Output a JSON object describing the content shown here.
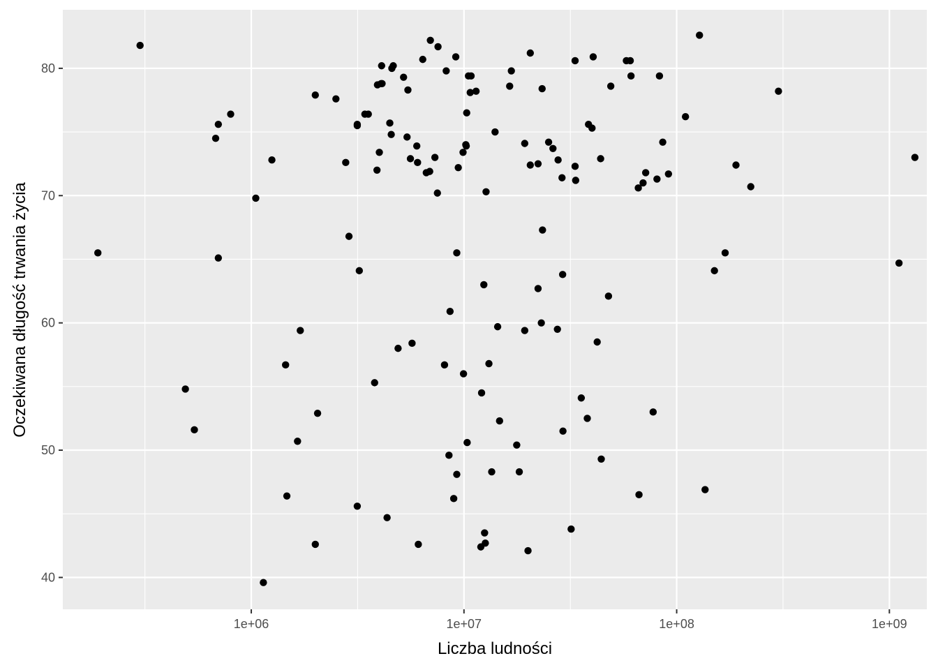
{
  "chart_data": {
    "type": "scatter",
    "title": "",
    "xlabel": "Liczba ludności",
    "ylabel": "Oczekiwana długość trwania życia",
    "x_scale": "log10",
    "xlim": [
      130000,
      1500000000
    ],
    "ylim": [
      37.5,
      84.6
    ],
    "x_ticks": [
      1000000,
      10000000,
      100000000,
      1000000000
    ],
    "x_tick_labels": [
      "1e+06",
      "1e+07",
      "1e+08",
      "1e+09"
    ],
    "y_ticks": [
      40,
      50,
      60,
      70,
      80
    ],
    "y_tick_labels": [
      "40",
      "50",
      "60",
      "70",
      "80"
    ],
    "grid": true,
    "legend": "none",
    "colors": {
      "panel": "#ebebeb",
      "grid": "#ffffff",
      "point": "#000000"
    },
    "points": [
      [
        190000,
        65.5
      ],
      [
        300000,
        81.8
      ],
      [
        490000,
        54.8
      ],
      [
        540000,
        51.6
      ],
      [
        680000,
        74.5
      ],
      [
        700000,
        75.6
      ],
      [
        700000,
        65.1
      ],
      [
        800000,
        76.4
      ],
      [
        1050000,
        69.8
      ],
      [
        1140000,
        39.6
      ],
      [
        1250000,
        72.8
      ],
      [
        1450000,
        56.7
      ],
      [
        1470000,
        46.4
      ],
      [
        1650000,
        50.7
      ],
      [
        1700000,
        59.4
      ],
      [
        2000000,
        77.9
      ],
      [
        2000000,
        42.6
      ],
      [
        2050000,
        52.9
      ],
      [
        2500000,
        77.6
      ],
      [
        2780000,
        72.6
      ],
      [
        2880000,
        66.8
      ],
      [
        3150000,
        75.6
      ],
      [
        3150000,
        75.5
      ],
      [
        3150000,
        45.6
      ],
      [
        3220000,
        64.1
      ],
      [
        3420000,
        76.4
      ],
      [
        3550000,
        76.4
      ],
      [
        3800000,
        55.3
      ],
      [
        3900000,
        72.0
      ],
      [
        3920000,
        78.7
      ],
      [
        4000000,
        73.4
      ],
      [
        4080000,
        78.8
      ],
      [
        4100000,
        80.2
      ],
      [
        4120000,
        78.8
      ],
      [
        4350000,
        44.7
      ],
      [
        4480000,
        75.7
      ],
      [
        4550000,
        74.8
      ],
      [
        4580000,
        80.0
      ],
      [
        4650000,
        80.2
      ],
      [
        4900000,
        58.0
      ],
      [
        5200000,
        79.3
      ],
      [
        5400000,
        74.6
      ],
      [
        5450000,
        78.3
      ],
      [
        5600000,
        72.9
      ],
      [
        5700000,
        58.4
      ],
      [
        6000000,
        73.9
      ],
      [
        6050000,
        72.6
      ],
      [
        6100000,
        42.6
      ],
      [
        6400000,
        80.7
      ],
      [
        6650000,
        71.8
      ],
      [
        6900000,
        71.9
      ],
      [
        6950000,
        82.2
      ],
      [
        7300000,
        73.0
      ],
      [
        7500000,
        70.2
      ],
      [
        7550000,
        81.7
      ],
      [
        8100000,
        56.7
      ],
      [
        8250000,
        79.8
      ],
      [
        8500000,
        49.6
      ],
      [
        8600000,
        60.9
      ],
      [
        8950000,
        46.2
      ],
      [
        9150000,
        80.9
      ],
      [
        9250000,
        65.5
      ],
      [
        9250000,
        48.1
      ],
      [
        9400000,
        72.2
      ],
      [
        9900000,
        73.4
      ],
      [
        9950000,
        56.0
      ],
      [
        10200000,
        74.0
      ],
      [
        10250000,
        73.9
      ],
      [
        10300000,
        76.5
      ],
      [
        10350000,
        50.6
      ],
      [
        10500000,
        79.4
      ],
      [
        10700000,
        78.1
      ],
      [
        10800000,
        79.4
      ],
      [
        11400000,
        78.2
      ],
      [
        12000000,
        42.4
      ],
      [
        12100000,
        54.5
      ],
      [
        12400000,
        63.0
      ],
      [
        12500000,
        43.5
      ],
      [
        12600000,
        42.7
      ],
      [
        12700000,
        70.3
      ],
      [
        13100000,
        56.8
      ],
      [
        13500000,
        48.3
      ],
      [
        14000000,
        75.0
      ],
      [
        14400000,
        59.7
      ],
      [
        14700000,
        52.3
      ],
      [
        16400000,
        78.6
      ],
      [
        16700000,
        79.8
      ],
      [
        17700000,
        50.4
      ],
      [
        18200000,
        48.3
      ],
      [
        19300000,
        74.1
      ],
      [
        19300000,
        59.4
      ],
      [
        20000000,
        42.1
      ],
      [
        20500000,
        81.2
      ],
      [
        20500000,
        72.4
      ],
      [
        22300000,
        72.5
      ],
      [
        22300000,
        62.7
      ],
      [
        23100000,
        60.0
      ],
      [
        23300000,
        78.4
      ],
      [
        23400000,
        67.3
      ],
      [
        25000000,
        74.2
      ],
      [
        26200000,
        73.7
      ],
      [
        27500000,
        59.5
      ],
      [
        27700000,
        72.8
      ],
      [
        28900000,
        71.4
      ],
      [
        29100000,
        63.8
      ],
      [
        29200000,
        51.5
      ],
      [
        31900000,
        43.8
      ],
      [
        33300000,
        80.6
      ],
      [
        33300000,
        72.3
      ],
      [
        33500000,
        71.2
      ],
      [
        35600000,
        54.1
      ],
      [
        38000000,
        52.5
      ],
      [
        38500000,
        75.6
      ],
      [
        40000000,
        75.3
      ],
      [
        40500000,
        80.9
      ],
      [
        42300000,
        58.5
      ],
      [
        43900000,
        72.9
      ],
      [
        44200000,
        49.3
      ],
      [
        47800000,
        62.1
      ],
      [
        49000000,
        78.6
      ],
      [
        58000000,
        80.6
      ],
      [
        60500000,
        80.6
      ],
      [
        61000000,
        79.4
      ],
      [
        66000000,
        70.6
      ],
      [
        66500000,
        46.5
      ],
      [
        69500000,
        71.0
      ],
      [
        71500000,
        71.8
      ],
      [
        77500000,
        53.0
      ],
      [
        80800000,
        71.3
      ],
      [
        83000000,
        79.4
      ],
      [
        86000000,
        74.2
      ],
      [
        91500000,
        71.7
      ],
      [
        110000000,
        76.2
      ],
      [
        128000000,
        82.6
      ],
      [
        136000000,
        46.9
      ],
      [
        150500000,
        64.1
      ],
      [
        169000000,
        65.5
      ],
      [
        190000000,
        72.4
      ],
      [
        223000000,
        70.7
      ],
      [
        301000000,
        78.2
      ],
      [
        1110000000,
        64.7
      ],
      [
        1318000000,
        73.0
      ]
    ]
  }
}
